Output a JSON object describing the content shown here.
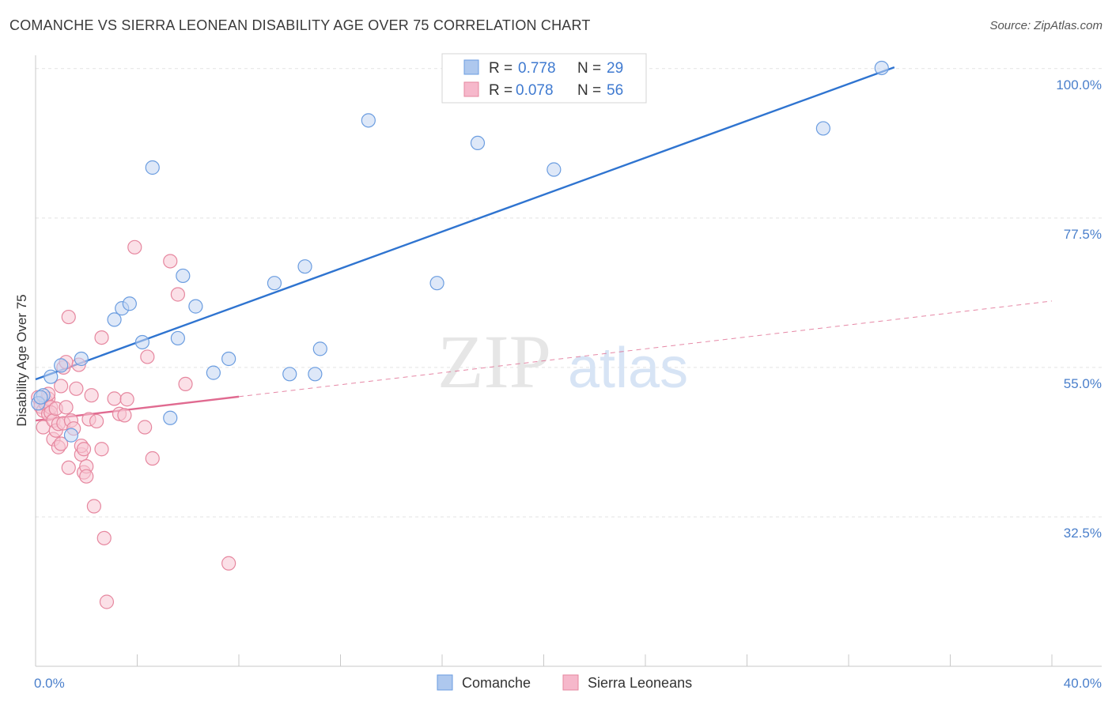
{
  "header": {
    "title": "COMANCHE VS SIERRA LEONEAN DISABILITY AGE OVER 75 CORRELATION CHART",
    "source": "Source: ZipAtlas.com"
  },
  "watermark": {
    "zip": "ZIP",
    "atlas": "atlas"
  },
  "legend": {
    "r_label": "R =",
    "n_label": "N =",
    "rows": [
      {
        "r": "0.778",
        "n": "29",
        "color": "#aec8ee"
      },
      {
        "r": "0.078",
        "n": "56",
        "color": "#f6b8cb"
      }
    ]
  },
  "colors": {
    "comanche": "#6b9de0",
    "comanche_fill": "#c3d6f3",
    "comanche_line": "#2f74d0",
    "sierra": "#e6879f",
    "sierra_fill": "#f7c6d4",
    "sierra_line": "#e06a90",
    "grid": "#e3e3e3",
    "axis_text": "#4a7fcb"
  },
  "chart_data": {
    "type": "scatter",
    "title": "COMANCHE VS SIERRA LEONEAN DISABILITY AGE OVER 75 CORRELATION CHART",
    "xlabel": "",
    "ylabel": "Disability Age Over 75",
    "xlim": [
      0,
      40
    ],
    "ylim": [
      10,
      102
    ],
    "x_tick_labels": [
      "0.0%",
      "40.0%"
    ],
    "y_ticks": [
      32.5,
      55.0,
      77.5,
      100.0
    ],
    "y_tick_labels": [
      "32.5%",
      "55.0%",
      "77.5%",
      "100.0%"
    ],
    "grid": true,
    "legend_position": "top-center",
    "series": [
      {
        "name": "Comanche",
        "r": 0.778,
        "n": 29,
        "trend": {
          "x": [
            0.0,
            33.8
          ],
          "y": [
            53.2,
            100.2
          ]
        },
        "points": [
          [
            0.3,
            50.8
          ],
          [
            0.6,
            53.6
          ],
          [
            1.0,
            55.3
          ],
          [
            1.4,
            44.8
          ],
          [
            1.8,
            56.3
          ],
          [
            3.1,
            62.2
          ],
          [
            3.4,
            63.9
          ],
          [
            3.7,
            64.6
          ],
          [
            4.2,
            58.8
          ],
          [
            4.6,
            85.1
          ],
          [
            5.3,
            47.4
          ],
          [
            5.6,
            59.4
          ],
          [
            5.8,
            68.8
          ],
          [
            6.3,
            64.2
          ],
          [
            7.0,
            54.2
          ],
          [
            7.6,
            56.3
          ],
          [
            9.4,
            67.7
          ],
          [
            10.0,
            54.0
          ],
          [
            10.6,
            70.2
          ],
          [
            11.0,
            54.0
          ],
          [
            11.2,
            57.8
          ],
          [
            13.1,
            92.2
          ],
          [
            15.8,
            67.7
          ],
          [
            17.4,
            88.8
          ],
          [
            20.4,
            84.8
          ],
          [
            31.0,
            91.0
          ],
          [
            33.3,
            100.1
          ],
          [
            0.1,
            49.6
          ],
          [
            0.2,
            50.5
          ]
        ]
      },
      {
        "name": "Sierra Leoneans",
        "r": 0.078,
        "n": 56,
        "trend": {
          "x": [
            0.0,
            8.0
          ],
          "y": [
            47.0,
            50.6
          ]
        },
        "trend_extended": {
          "x": [
            8.0,
            40.0
          ],
          "y": [
            50.6,
            65.0
          ]
        },
        "points": [
          [
            0.1,
            50.5
          ],
          [
            0.2,
            49.6
          ],
          [
            0.2,
            49.1
          ],
          [
            0.3,
            48.5
          ],
          [
            0.3,
            46.0
          ],
          [
            0.4,
            50.0
          ],
          [
            0.4,
            49.5
          ],
          [
            0.5,
            48.0
          ],
          [
            0.5,
            50.3
          ],
          [
            0.6,
            49.0
          ],
          [
            0.6,
            48.2
          ],
          [
            0.7,
            44.2
          ],
          [
            0.7,
            47.0
          ],
          [
            0.8,
            45.5
          ],
          [
            0.8,
            48.8
          ],
          [
            0.9,
            43.0
          ],
          [
            0.9,
            46.5
          ],
          [
            1.0,
            43.5
          ],
          [
            1.0,
            52.2
          ],
          [
            1.1,
            46.6
          ],
          [
            1.1,
            55.0
          ],
          [
            1.2,
            55.8
          ],
          [
            1.2,
            49.0
          ],
          [
            1.3,
            62.6
          ],
          [
            1.3,
            39.9
          ],
          [
            1.4,
            47.0
          ],
          [
            1.5,
            45.8
          ],
          [
            1.6,
            51.8
          ],
          [
            1.7,
            55.4
          ],
          [
            1.8,
            41.9
          ],
          [
            1.8,
            43.2
          ],
          [
            1.9,
            42.7
          ],
          [
            1.9,
            39.2
          ],
          [
            2.0,
            40.1
          ],
          [
            2.0,
            38.6
          ],
          [
            2.1,
            47.2
          ],
          [
            2.2,
            50.8
          ],
          [
            2.3,
            34.1
          ],
          [
            2.4,
            46.9
          ],
          [
            2.6,
            59.5
          ],
          [
            2.6,
            42.7
          ],
          [
            2.7,
            29.3
          ],
          [
            2.8,
            19.7
          ],
          [
            3.1,
            50.3
          ],
          [
            3.3,
            48.0
          ],
          [
            3.5,
            47.8
          ],
          [
            3.6,
            50.2
          ],
          [
            3.9,
            73.1
          ],
          [
            4.3,
            46.0
          ],
          [
            4.4,
            56.6
          ],
          [
            4.6,
            41.3
          ],
          [
            5.3,
            71.0
          ],
          [
            5.6,
            66.0
          ],
          [
            5.9,
            52.5
          ],
          [
            7.6,
            25.5
          ],
          [
            0.5,
            51.0
          ]
        ]
      }
    ]
  },
  "bottom_legend": [
    {
      "label": "Comanche"
    },
    {
      "label": "Sierra Leoneans"
    }
  ]
}
